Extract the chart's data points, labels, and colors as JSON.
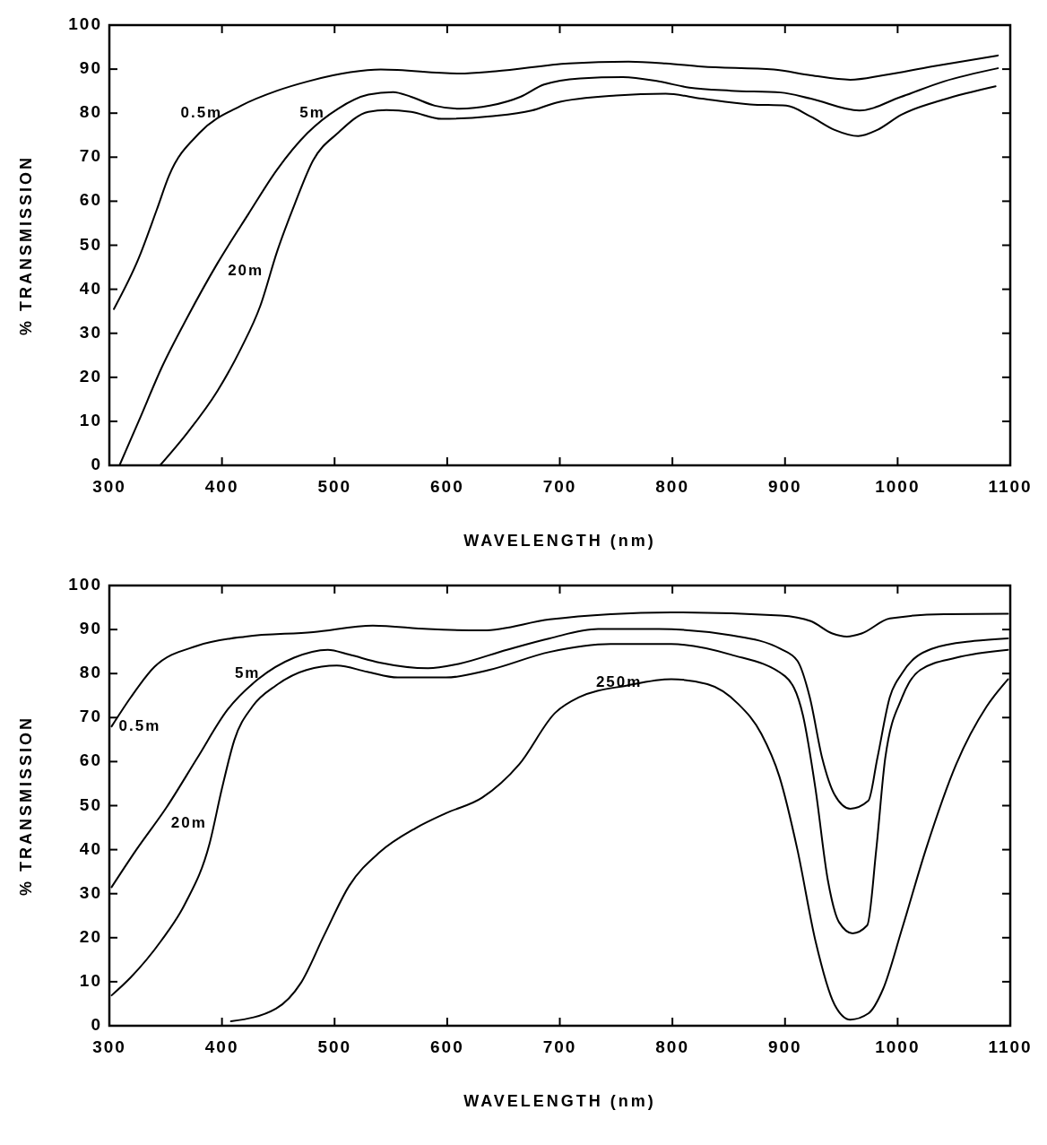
{
  "chart_data": [
    {
      "type": "line",
      "xlabel": "WAVELENGTH  (nm)",
      "ylabel": "% TRANSMISSION",
      "xlim": [
        300,
        1100
      ],
      "xticks": [
        300,
        400,
        500,
        600,
        700,
        800,
        900,
        1000,
        1100
      ],
      "ylim": [
        0,
        100
      ],
      "yticks": [
        0,
        10,
        20,
        30,
        40,
        50,
        60,
        70,
        80,
        90,
        100
      ],
      "grid": false,
      "series": [
        {
          "name": "0.5m",
          "color": "#000000",
          "x": [
            304,
            326,
            342,
            353,
            380,
            417,
            449,
            476,
            514,
            541,
            611,
            643,
            708,
            761,
            794,
            826,
            890,
            923,
            958,
            987,
            1030,
            1089
          ],
          "values": [
            35.5,
            47,
            58,
            65.8,
            75.5,
            81.7,
            85.1,
            87.2,
            89.3,
            89.9,
            89,
            89.5,
            91.3,
            91.7,
            91.3,
            90.6,
            89.9,
            88.6,
            87.6,
            88.6,
            90.6,
            93.1
          ]
        },
        {
          "name": "5m",
          "color": "#000000",
          "x": [
            309,
            326,
            347,
            369,
            396,
            423,
            449,
            476,
            503,
            530,
            552,
            568,
            589,
            611,
            638,
            665,
            686,
            718,
            756,
            788,
            815,
            852,
            896,
            923,
            966,
            1003,
            1041,
            1089
          ],
          "values": [
            0,
            10,
            22.5,
            33.5,
            45.9,
            56.9,
            67.2,
            75.5,
            81,
            84.2,
            84.8,
            83.7,
            81.7,
            81,
            81.7,
            83.7,
            86.5,
            87.9,
            88.2,
            87.2,
            85.8,
            85.1,
            84.7,
            83.3,
            80.6,
            83.7,
            87.2,
            90.2
          ]
        },
        {
          "name": "20m",
          "color": "#000000",
          "x": [
            345,
            369,
            396,
            417,
            434,
            449,
            465,
            481,
            503,
            530,
            546,
            568,
            595,
            638,
            675,
            697,
            750,
            794,
            826,
            869,
            901,
            923,
            944,
            965,
            982,
            1003,
            1041,
            1087
          ],
          "values": [
            0,
            7.3,
            16.9,
            26.6,
            36.2,
            48.6,
            59.6,
            69.3,
            75.5,
            80.3,
            80.7,
            80.3,
            78.7,
            79.3,
            80.6,
            82.4,
            84,
            84.4,
            83.3,
            82,
            81.7,
            79.2,
            76.2,
            74.8,
            76.2,
            79.6,
            83.1,
            86.1
          ]
        }
      ]
    },
    {
      "type": "line",
      "xlabel": "WAVELENGTH  (nm)",
      "ylabel": "% TRANSMISSION",
      "xlim": [
        300,
        1100
      ],
      "xticks": [
        300,
        400,
        500,
        600,
        700,
        800,
        900,
        1000,
        1100
      ],
      "ylim": [
        0,
        100
      ],
      "yticks": [
        0,
        10,
        20,
        30,
        40,
        50,
        60,
        70,
        80,
        90,
        100
      ],
      "grid": false,
      "series": [
        {
          "name": "0.5m",
          "color": "#000000",
          "x": [
            302,
            319,
            340,
            378,
            421,
            481,
            534,
            583,
            632,
            691,
            745,
            799,
            896,
            923,
            942,
            955,
            968,
            993,
            1041,
            1098
          ],
          "values": [
            68,
            74.6,
            81.5,
            86.3,
            88.4,
            89.4,
            90.9,
            90.1,
            89.8,
            92.3,
            93.5,
            93.9,
            93.2,
            91.9,
            89.1,
            88.4,
            89.1,
            92.5,
            93.5,
            93.6
          ]
        },
        {
          "name": "5m",
          "color": "#000000",
          "x": [
            302,
            324,
            351,
            378,
            405,
            432,
            464,
            494,
            513,
            540,
            583,
            610,
            653,
            691,
            734,
            788,
            852,
            896,
            911,
            922,
            933,
            944,
            958,
            974,
            982,
            993,
            1004,
            1030,
            1068,
            1098
          ],
          "values": [
            31.5,
            40,
            49.7,
            60.8,
            71.8,
            78.7,
            83.6,
            85.4,
            84.3,
            82.5,
            81.2,
            82.2,
            85.4,
            88,
            90.1,
            90.1,
            88.7,
            85.6,
            82.9,
            74.6,
            60.8,
            52.5,
            49.3,
            51.1,
            60.8,
            74.6,
            80.1,
            85.6,
            87.4,
            88
          ]
        },
        {
          "name": "20m",
          "color": "#000000",
          "x": [
            302,
            319,
            346,
            367,
            389,
            400,
            411,
            427,
            448,
            475,
            502,
            529,
            556,
            599,
            637,
            691,
            745,
            799,
            852,
            900,
            916,
            927,
            938,
            948,
            960,
            973,
            981,
            989,
            1004,
            1020,
            1052,
            1098
          ],
          "values": [
            6.9,
            11,
            19.3,
            27.6,
            41.4,
            53.9,
            64.9,
            72.5,
            77.3,
            80.8,
            81.8,
            80.4,
            79.1,
            79.1,
            80.8,
            84.9,
            86.7,
            86.7,
            84.3,
            79.4,
            70.4,
            53.9,
            33.1,
            23.5,
            21,
            22.8,
            40,
            60.8,
            74.6,
            80.8,
            83.6,
            85.4
          ]
        },
        {
          "name": "250m",
          "color": "#000000",
          "x": [
            408,
            448,
            470,
            491,
            513,
            540,
            572,
            599,
            631,
            664,
            696,
            717,
            760,
            799,
            831,
            858,
            879,
            895,
            911,
            927,
            944,
            958,
            974,
            987,
            1004,
            1025,
            1052,
            1079,
            1098
          ],
          "values": [
            1,
            3.9,
            9.7,
            20.7,
            31.8,
            39.4,
            44.9,
            48.3,
            51.8,
            59.4,
            71.1,
            74.6,
            77.3,
            78.7,
            77.6,
            73.2,
            66.3,
            56.6,
            40,
            19.3,
            4.8,
            1.4,
            2.8,
            8.3,
            22.1,
            40,
            59.4,
            72.5,
            78.7
          ]
        }
      ]
    }
  ]
}
